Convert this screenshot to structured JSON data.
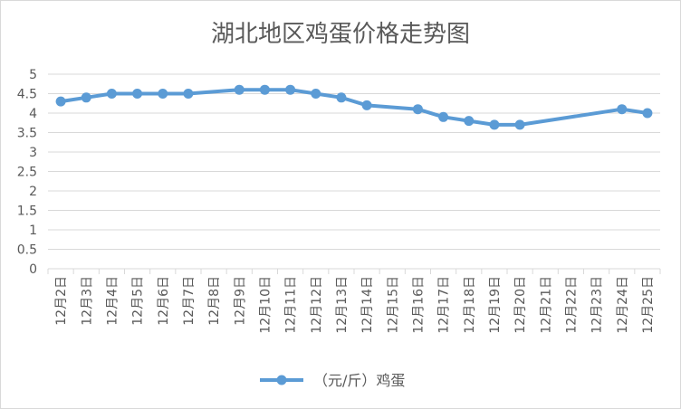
{
  "colors": {
    "series": "#5B9BD5",
    "grid": "#d9d9d9",
    "text": "#595959"
  },
  "chart_data": {
    "type": "line",
    "title": "湖北地区鸡蛋价格走势图",
    "categories": [
      "12月2日",
      "12月3日",
      "12月4日",
      "12月5日",
      "12月6日",
      "12月7日",
      "12月8日",
      "12月9日",
      "12月10日",
      "12月11日",
      "12月12日",
      "12月13日",
      "12月14日",
      "12月15日",
      "12月16日",
      "12月17日",
      "12月18日",
      "12月19日",
      "12月20日",
      "12月21日",
      "12月22日",
      "12月23日",
      "12月24日",
      "12月25日"
    ],
    "series": [
      {
        "name": "（元/斤）鸡蛋",
        "values": [
          4.3,
          4.4,
          4.5,
          4.5,
          4.5,
          4.5,
          null,
          4.6,
          4.6,
          4.6,
          4.5,
          4.4,
          4.2,
          null,
          4.1,
          3.9,
          3.8,
          3.7,
          3.7,
          null,
          null,
          null,
          4.1,
          4.0
        ]
      }
    ],
    "yticks": [
      "0",
      "0.5",
      "1",
      "1.5",
      "2",
      "2.5",
      "3",
      "3.5",
      "4",
      "4.5",
      "5"
    ],
    "ylim": [
      0,
      5
    ],
    "grid": true,
    "legend": "bottom"
  }
}
